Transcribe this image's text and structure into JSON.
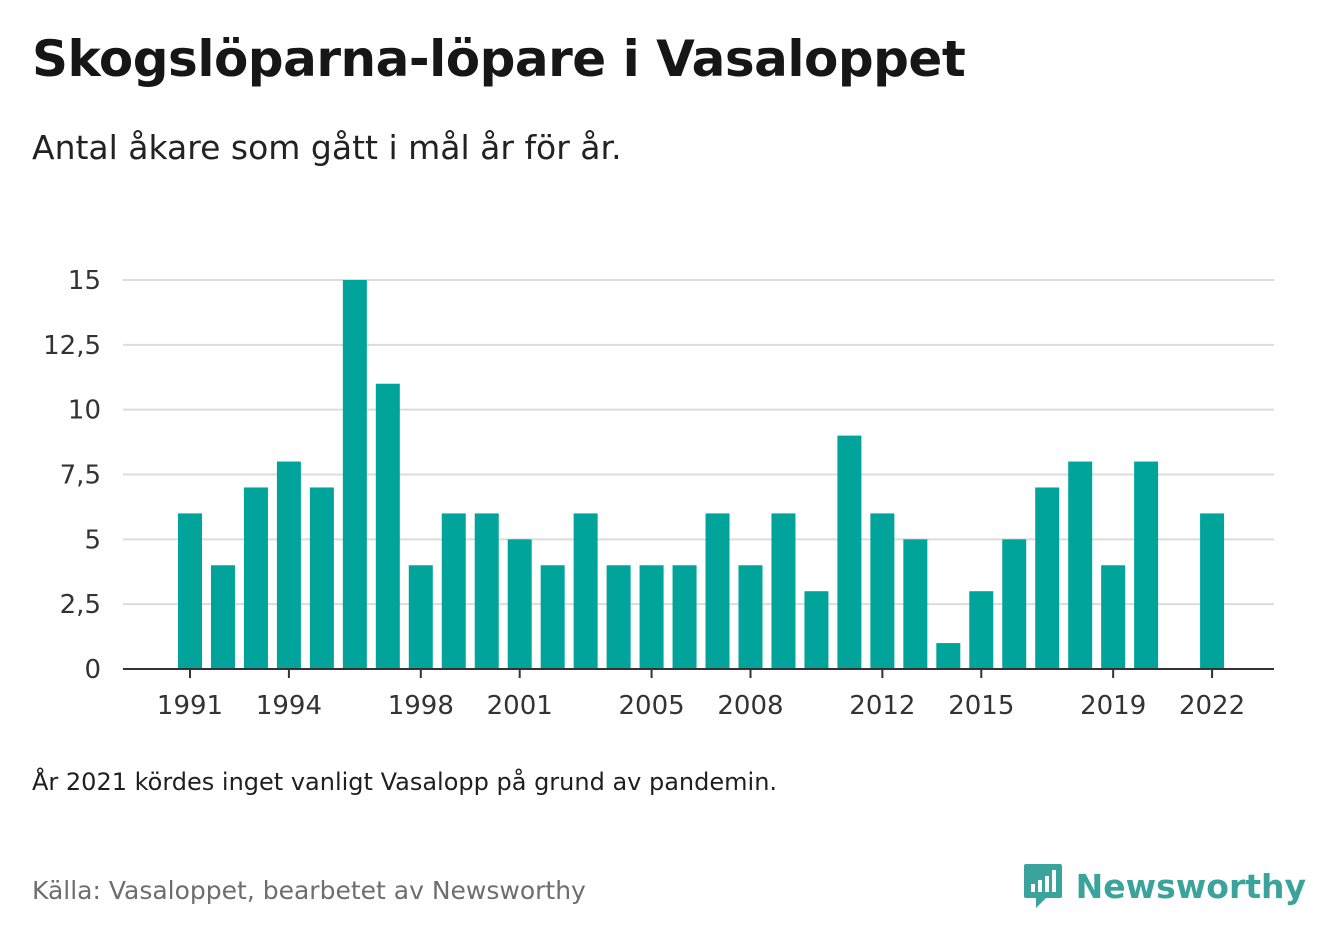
{
  "header": {
    "title": "Skogslöparna-löpare i Vasaloppet",
    "subtitle": "Antal åkare som gått i mål år för år."
  },
  "colors": {
    "bar": "#00a49b",
    "grid": "#dcdcdc",
    "axis": "#333333",
    "brand": "#3aa39b"
  },
  "chart_data": {
    "type": "bar",
    "x": [
      1991,
      1992,
      1993,
      1994,
      1995,
      1996,
      1997,
      1998,
      1999,
      2000,
      2001,
      2002,
      2003,
      2004,
      2005,
      2006,
      2007,
      2008,
      2009,
      2010,
      2011,
      2012,
      2013,
      2014,
      2015,
      2016,
      2017,
      2018,
      2019,
      2020,
      2021,
      2022
    ],
    "values": [
      6,
      4,
      7,
      8,
      7,
      15,
      11,
      4,
      6,
      6,
      5,
      4,
      6,
      4,
      4,
      4,
      6,
      4,
      6,
      3,
      9,
      6,
      5,
      1,
      3,
      5,
      7,
      8,
      4,
      8,
      null,
      6
    ],
    "x_tick_labels": [
      "1991",
      "1994",
      "1998",
      "2001",
      "2005",
      "2008",
      "2012",
      "2015",
      "2019",
      "2022"
    ],
    "y_ticks": [
      0,
      2.5,
      5,
      7.5,
      10,
      12.5,
      15
    ],
    "y_tick_labels": [
      "0",
      "2,5",
      "5",
      "7,5",
      "10",
      "12,5",
      "15"
    ],
    "ylim": [
      0,
      15
    ],
    "grid": true,
    "xlabel": "",
    "ylabel": ""
  },
  "footer": {
    "note": "År 2021 kördes inget vanligt Vasalopp på grund av pandemin.",
    "source": "Källa: Vasaloppet, bearbetet av Newsworthy",
    "brand_name": "Newsworthy",
    "brand_icon": "newsworthy-logo-icon"
  }
}
